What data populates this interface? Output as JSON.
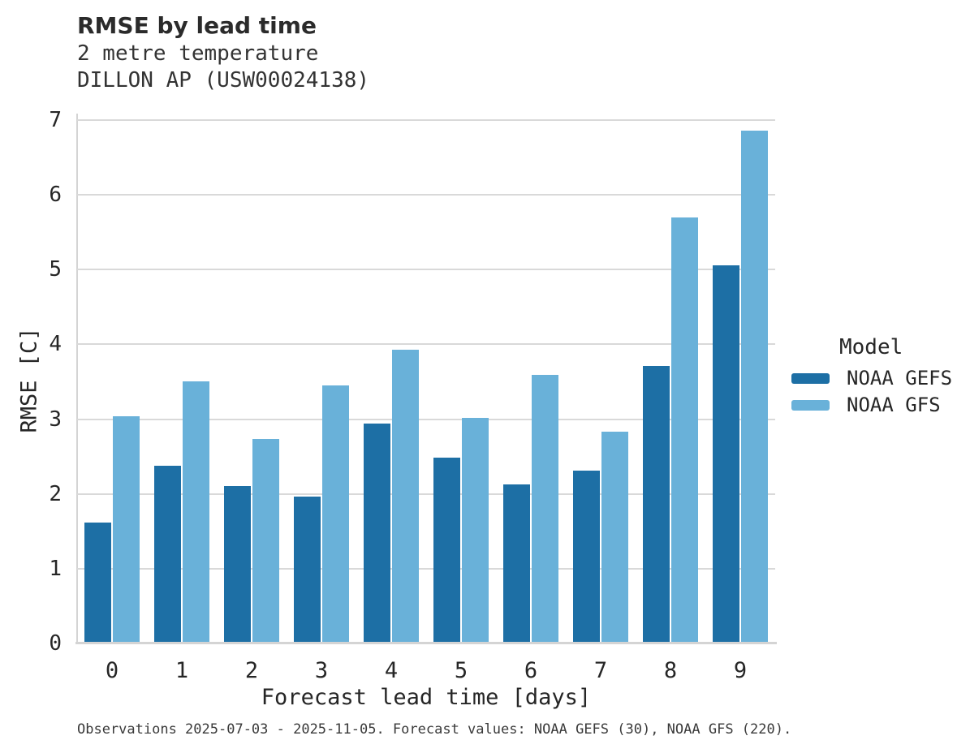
{
  "header": {
    "title": "RMSE by lead time",
    "subtitle1": "2 metre temperature",
    "subtitle2": "DILLON AP (USW00024138)"
  },
  "chart_data": {
    "type": "bar",
    "title": "RMSE by lead time",
    "subtitle": [
      "2 metre temperature",
      "DILLON AP (USW00024138)"
    ],
    "categories": [
      "0",
      "1",
      "2",
      "3",
      "4",
      "5",
      "6",
      "7",
      "8",
      "9"
    ],
    "series": [
      {
        "name": "NOAA GEFS",
        "color": "#1d6fa5",
        "values": [
          1.62,
          2.38,
          2.1,
          1.96,
          2.94,
          2.49,
          2.13,
          2.31,
          3.71,
          5.06
        ]
      },
      {
        "name": "NOAA GFS",
        "color": "#69b1d9",
        "values": [
          3.04,
          3.5,
          2.74,
          3.45,
          3.93,
          3.02,
          3.59,
          2.83,
          5.7,
          6.86
        ]
      }
    ],
    "xlabel": "Forecast lead time [days]",
    "ylabel": "RMSE [C]",
    "ylim": [
      0,
      7
    ],
    "yticks": [
      0,
      1,
      2,
      3,
      4,
      5,
      6,
      7
    ],
    "grid": true,
    "grid_color": "#d9d9d9",
    "legend_title": "Model",
    "legend_position": "right"
  },
  "legend": {
    "title": "Model"
  },
  "footer": {
    "note": "Observations 2025-07-03 - 2025-11-05. Forecast values: NOAA GEFS (30), NOAA GFS (220)."
  }
}
